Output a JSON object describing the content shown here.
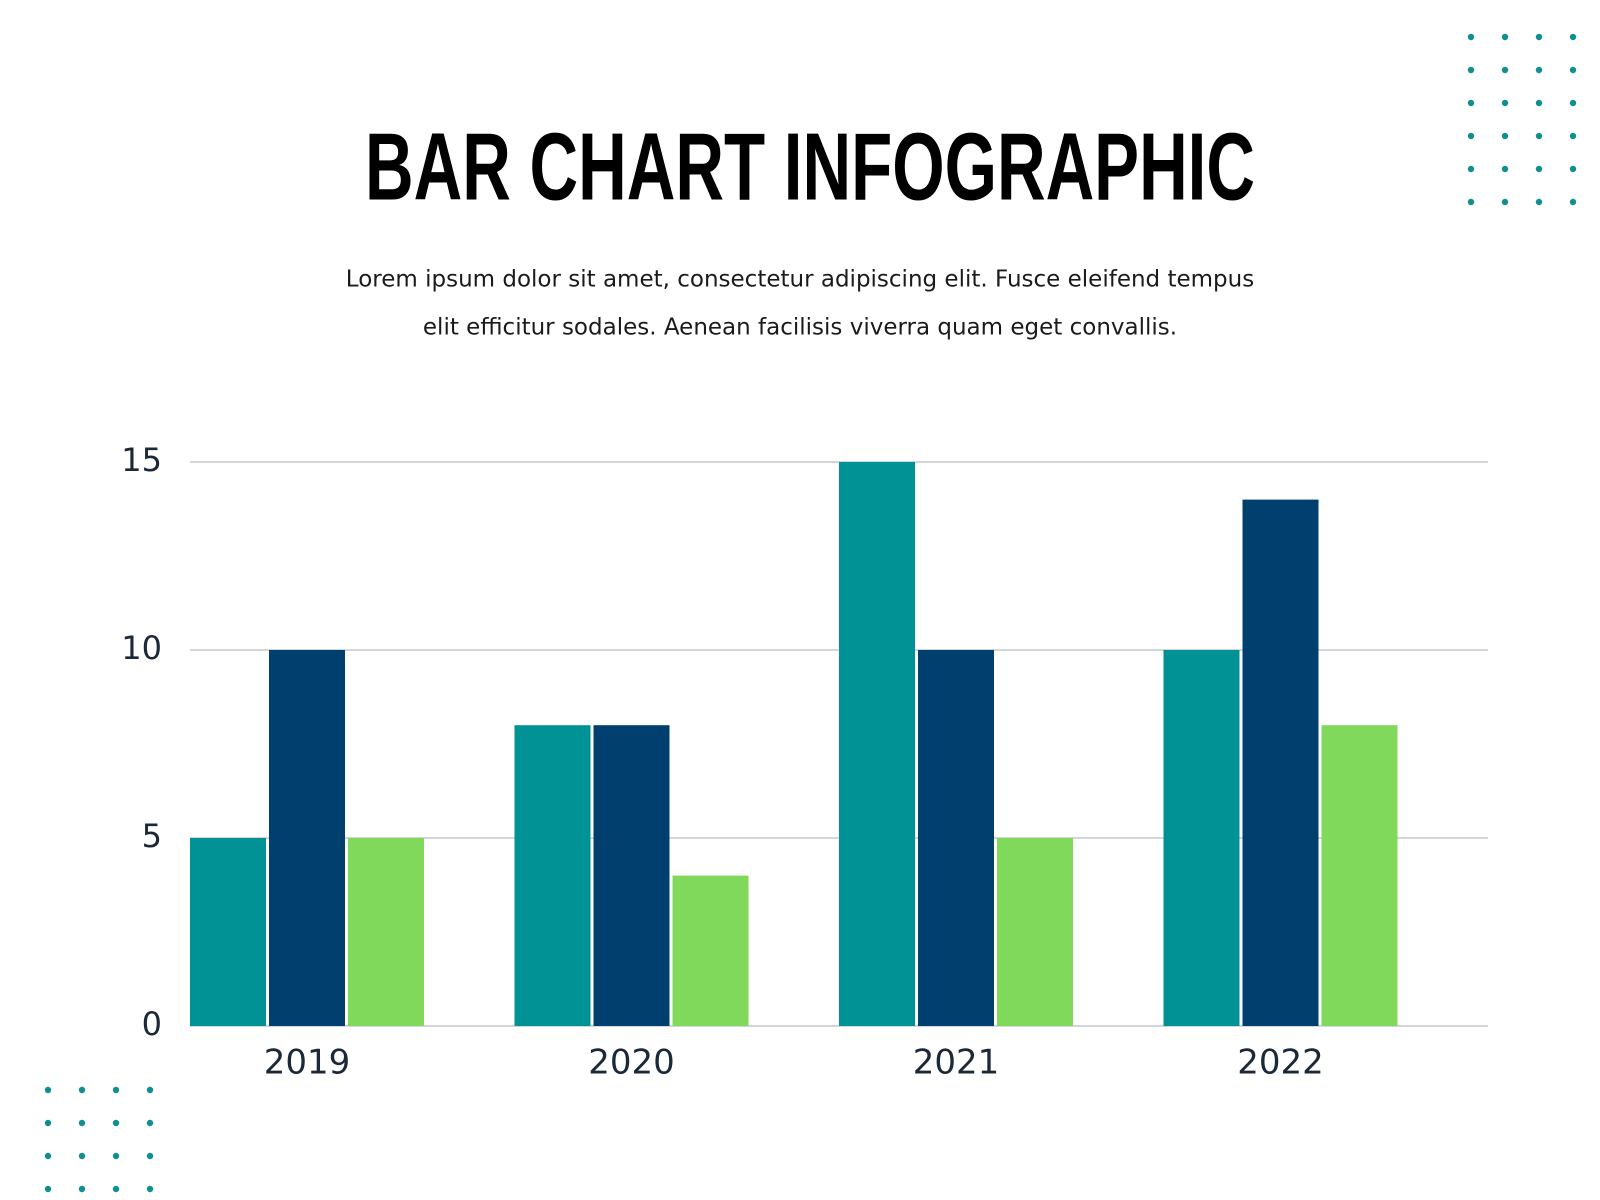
{
  "chart_data": {
    "type": "bar",
    "title": "BAR CHART INFOGRAPHIC",
    "subtitle_lines": [
      "Lorem ipsum dolor sit amet, consectetur adipiscing elit. Fusce eleifend tempus",
      "elit efficitur sodales. Aenean facilisis viverra quam eget convallis."
    ],
    "categories": [
      "2019",
      "2020",
      "2021",
      "2022"
    ],
    "series": [
      {
        "color": "#009294",
        "values": [
          5,
          8,
          15,
          10
        ]
      },
      {
        "color": "#003f6e",
        "values": [
          10,
          8,
          10,
          14
        ]
      },
      {
        "color": "#80d95a",
        "values": [
          5,
          4,
          5,
          8
        ]
      }
    ],
    "ylim": [
      0,
      15
    ],
    "yticks": [
      0,
      5,
      10,
      15
    ],
    "grid": true
  }
}
